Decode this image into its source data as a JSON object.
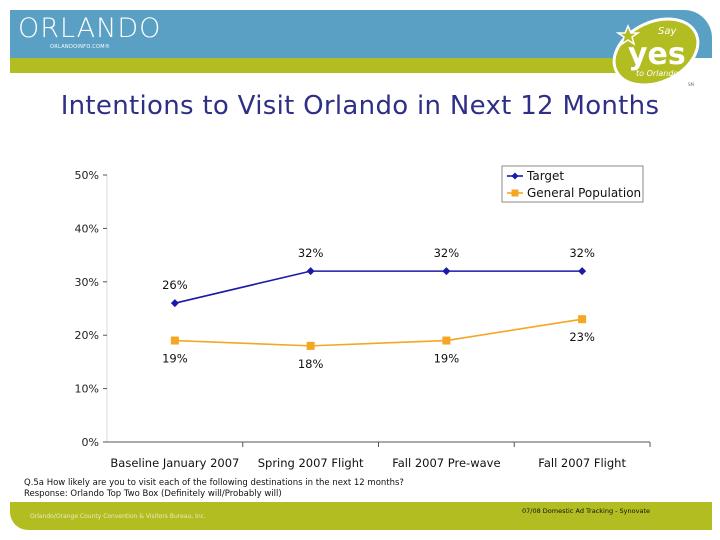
{
  "header": {
    "logo_text": "ORLANDO",
    "logo_subtext": "ORLANDOINFO.COM®",
    "badge": {
      "line1": "Say",
      "line2": "yes",
      "line3": "to Orlando",
      "tm": "SM"
    },
    "colors": {
      "blue": "#5a9fc4",
      "green": "#b1bd21"
    }
  },
  "title": "Intentions to Visit Orlando in Next 12 Months",
  "chart_data": {
    "type": "line",
    "title": "Intentions to Visit Orlando in Next 12 Months",
    "xlabel": "",
    "ylabel": "",
    "categories": [
      "Baseline January 2007",
      "Spring 2007 Flight",
      "Fall 2007 Pre-wave",
      "Fall 2007 Flight"
    ],
    "ylim": [
      0,
      50
    ],
    "yticks": [
      0,
      10,
      20,
      30,
      40,
      50
    ],
    "ytick_labels": [
      "0%",
      "10%",
      "20%",
      "30%",
      "40%",
      "50%"
    ],
    "grid": false,
    "legend_position": "top-right",
    "series": [
      {
        "name": "Target",
        "values": [
          26,
          32,
          32,
          32
        ],
        "labels": [
          "26%",
          "32%",
          "32%",
          "32%"
        ],
        "color": "#1a1aa8",
        "marker": "diamond"
      },
      {
        "name": "General Population",
        "values": [
          19,
          18,
          19,
          23
        ],
        "labels": [
          "19%",
          "18%",
          "19%",
          "23%"
        ],
        "color": "#f5a623",
        "marker": "square"
      }
    ]
  },
  "note": {
    "line1": "Q.5a How likely are you to visit each of the following destinations in the next 12 months?",
    "line2": "Response: Orlando Top Two Box (Definitely will/Probably will)"
  },
  "footer": {
    "left": "Orlando/Orange County Convention & Visitors Bureau, Inc.",
    "right": "07/08 Domestic Ad Tracking - Synovate"
  }
}
